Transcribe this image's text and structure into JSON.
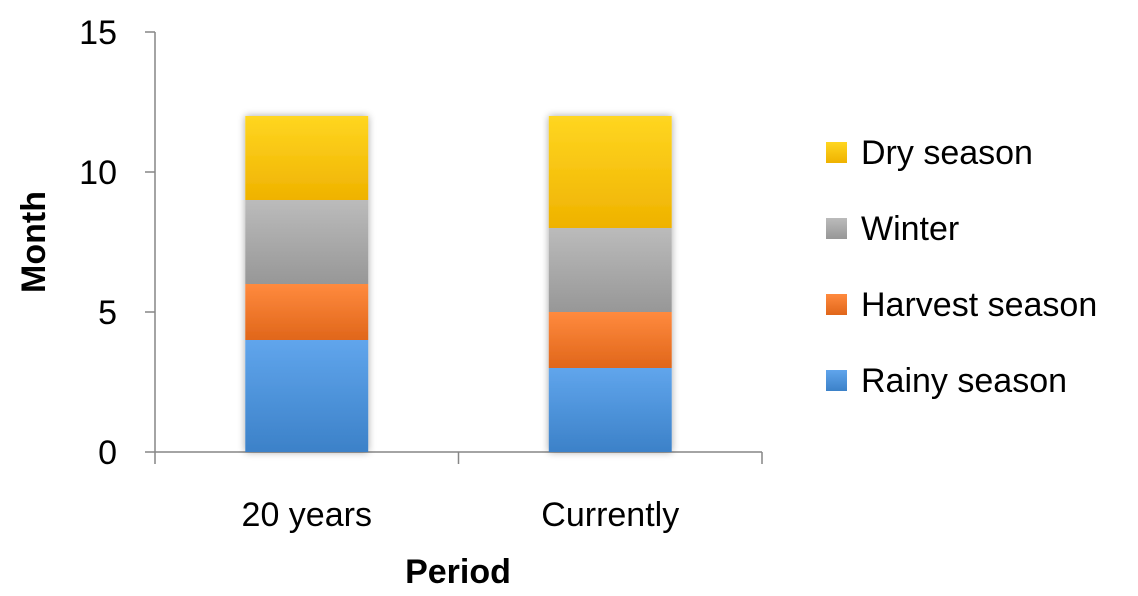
{
  "chart_data": {
    "type": "bar",
    "stacked": true,
    "categories": [
      "20 years",
      "Currently"
    ],
    "series": [
      {
        "name": "Rainy season",
        "values": [
          4,
          3
        ],
        "color": "#4a8fd6"
      },
      {
        "name": "Harvest season",
        "values": [
          2,
          2
        ],
        "color": "#ee7428"
      },
      {
        "name": "Winter",
        "values": [
          3,
          3
        ],
        "color": "#a5a5a5"
      },
      {
        "name": "Dry season",
        "values": [
          3,
          4
        ],
        "color": "#fdc00b"
      }
    ],
    "legend_order": [
      "Dry season",
      "Winter",
      "Harvest season",
      "Rainy season"
    ],
    "xlabel": "Period",
    "ylabel": "Month",
    "ylim": [
      0,
      15
    ],
    "yticks": [
      0,
      5,
      10,
      15
    ],
    "grid": false,
    "legend_position": "right"
  }
}
